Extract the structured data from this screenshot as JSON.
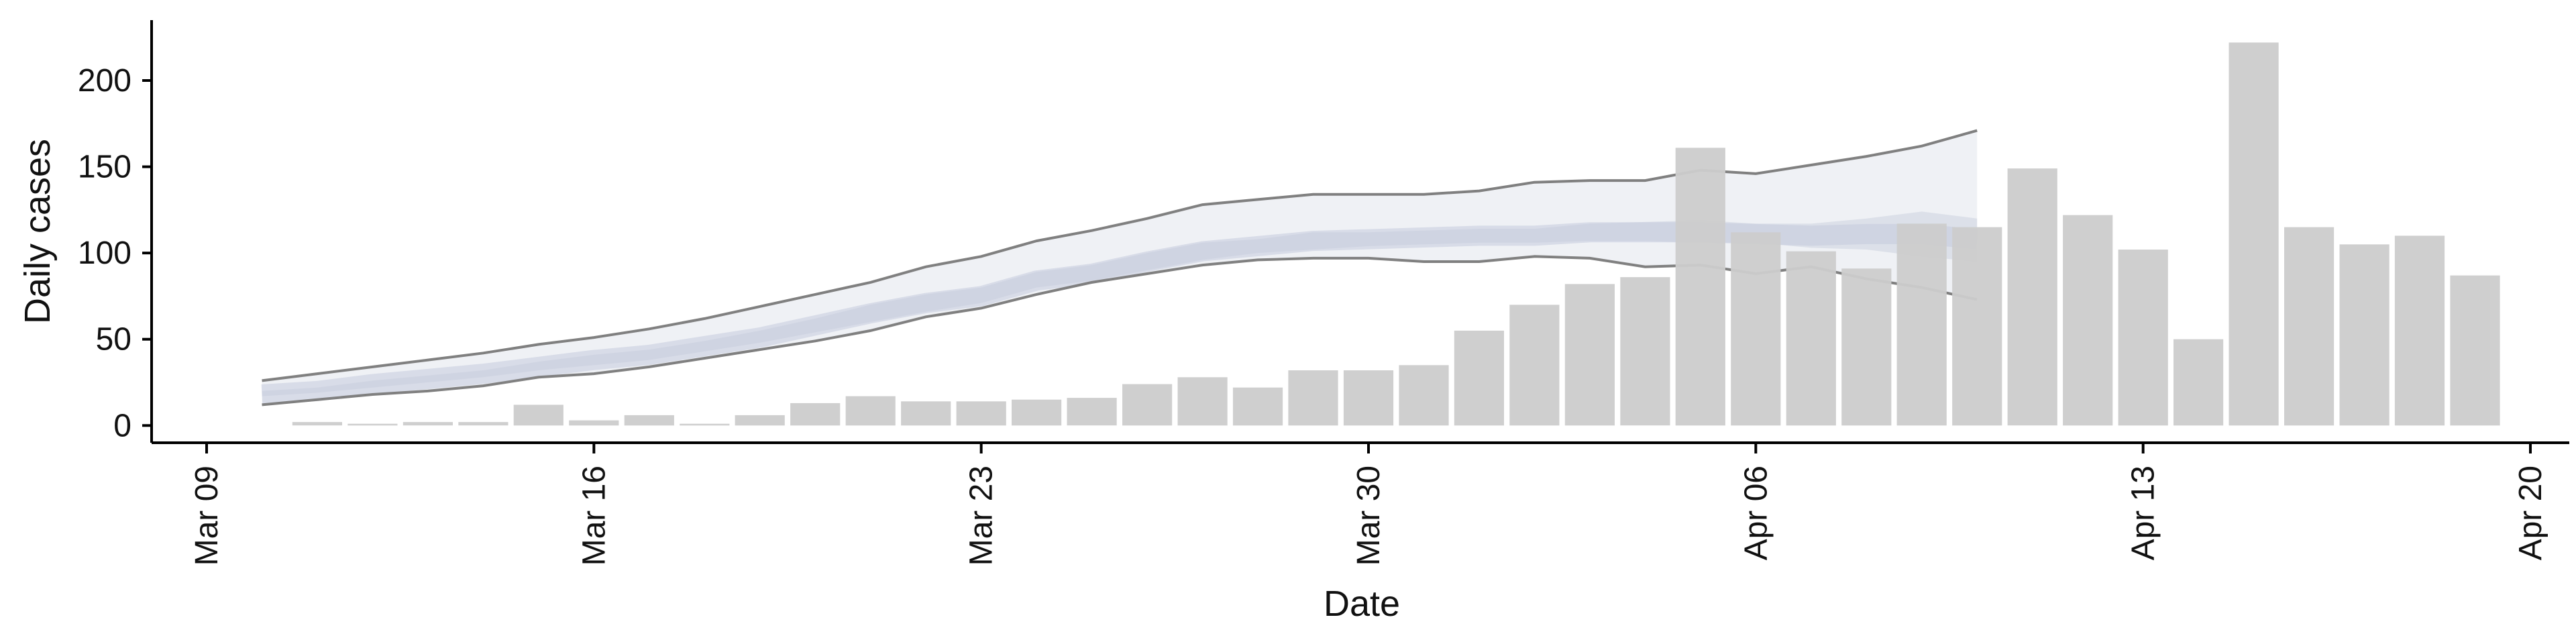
{
  "chart_data": {
    "type": "bar",
    "xlabel": "Date",
    "ylabel": "Daily cases",
    "ylim": [
      -10,
      235
    ],
    "xlim": [
      "2020-03-09",
      "2020-04-20"
    ],
    "y_ticks": [
      0,
      50,
      100,
      150,
      200
    ],
    "x_ticks": [
      {
        "date": "2020-03-09",
        "label": "Mar 09"
      },
      {
        "date": "2020-03-16",
        "label": "Mar 16"
      },
      {
        "date": "2020-03-23",
        "label": "Mar 23"
      },
      {
        "date": "2020-03-30",
        "label": "Mar 30"
      },
      {
        "date": "2020-04-06",
        "label": "Apr 06"
      },
      {
        "date": "2020-04-13",
        "label": "Apr 13"
      },
      {
        "date": "2020-04-20",
        "label": "Apr 20"
      }
    ],
    "grid": false,
    "legend": "none",
    "bars": {
      "color": "#cccccc",
      "dates": [
        "2020-03-11",
        "2020-03-12",
        "2020-03-13",
        "2020-03-14",
        "2020-03-15",
        "2020-03-16",
        "2020-03-17",
        "2020-03-18",
        "2020-03-19",
        "2020-03-20",
        "2020-03-21",
        "2020-03-22",
        "2020-03-23",
        "2020-03-24",
        "2020-03-25",
        "2020-03-26",
        "2020-03-27",
        "2020-03-28",
        "2020-03-29",
        "2020-03-30",
        "2020-03-31",
        "2020-04-01",
        "2020-04-02",
        "2020-04-03",
        "2020-04-04",
        "2020-04-05",
        "2020-04-06",
        "2020-04-07",
        "2020-04-08",
        "2020-04-09",
        "2020-04-10",
        "2020-04-11",
        "2020-04-12",
        "2020-04-13",
        "2020-04-14",
        "2020-04-15",
        "2020-04-16",
        "2020-04-17",
        "2020-04-18",
        "2020-04-19"
      ],
      "values": [
        2,
        1,
        2,
        2,
        12,
        3,
        6,
        1,
        6,
        13,
        17,
        14,
        14,
        15,
        16,
        24,
        28,
        22,
        32,
        32,
        35,
        55,
        70,
        82,
        86,
        161,
        112,
        101,
        91,
        117,
        115,
        149,
        122,
        102,
        50,
        222,
        115,
        105,
        110,
        87
      ]
    },
    "estimate": {
      "color_band": "#c5cbdc",
      "color_line": "#808080",
      "dates": [
        "2020-03-10",
        "2020-03-11",
        "2020-03-12",
        "2020-03-13",
        "2020-03-14",
        "2020-03-15",
        "2020-03-16",
        "2020-03-17",
        "2020-03-18",
        "2020-03-19",
        "2020-03-20",
        "2020-03-21",
        "2020-03-22",
        "2020-03-23",
        "2020-03-24",
        "2020-03-25",
        "2020-03-26",
        "2020-03-27",
        "2020-03-28",
        "2020-03-29",
        "2020-03-30",
        "2020-03-31",
        "2020-04-01",
        "2020-04-02",
        "2020-04-03",
        "2020-04-04",
        "2020-04-05",
        "2020-04-06",
        "2020-04-07",
        "2020-04-08",
        "2020-04-09",
        "2020-04-10"
      ],
      "upper_90": [
        26,
        30,
        34,
        38,
        42,
        47,
        51,
        56,
        62,
        69,
        76,
        83,
        92,
        98,
        107,
        113,
        120,
        128,
        131,
        134,
        134,
        134,
        136,
        141,
        142,
        142,
        148,
        146,
        151,
        156,
        162,
        171
      ],
      "lower_90": [
        12,
        15,
        18,
        20,
        23,
        28,
        30,
        34,
        39,
        44,
        49,
        55,
        63,
        68,
        76,
        83,
        88,
        93,
        96,
        97,
        97,
        95,
        95,
        98,
        97,
        92,
        93,
        88,
        92,
        85,
        80,
        73
      ],
      "upper_50": [
        20,
        22,
        26,
        29,
        32,
        37,
        41,
        44,
        49,
        55,
        62,
        70,
        76,
        80,
        89,
        93,
        100,
        106,
        108,
        112,
        112,
        113,
        114,
        114,
        117,
        118,
        119,
        117,
        117,
        120,
        124,
        120
      ],
      "lower_50": [
        17,
        19,
        22,
        25,
        28,
        32,
        35,
        38,
        43,
        48,
        54,
        60,
        66,
        71,
        80,
        84,
        90,
        96,
        100,
        102,
        104,
        105,
        106,
        106,
        107,
        107,
        106,
        106,
        103,
        102,
        98,
        95
      ],
      "median": [
        18,
        20,
        24,
        27,
        30,
        34,
        38,
        41,
        46,
        51,
        58,
        65,
        71,
        75,
        84,
        88,
        95,
        101,
        104,
        107,
        108,
        109,
        110,
        110,
        112,
        112,
        112,
        111,
        110,
        111,
        111,
        108
      ]
    }
  }
}
